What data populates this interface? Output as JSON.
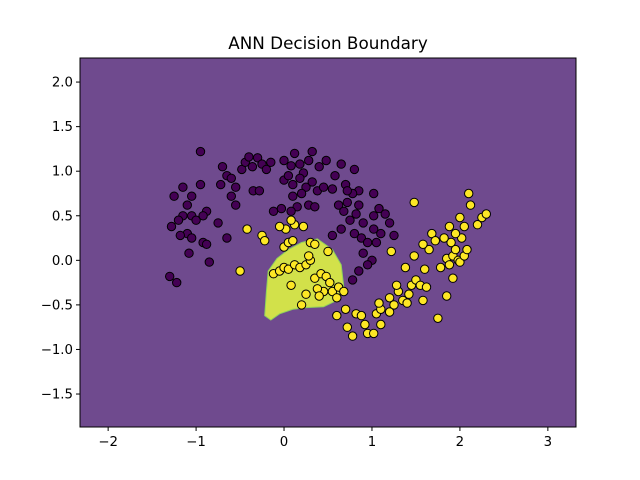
{
  "chart_data": {
    "type": "scatter",
    "title": "ANN Decision Boundary",
    "xlabel": "",
    "ylabel": "",
    "xlim": [
      -2.32,
      3.32
    ],
    "ylim": [
      -1.87,
      2.27
    ],
    "xticks": [
      -2,
      -1,
      0,
      1,
      2,
      3
    ],
    "xtick_labels": [
      "−2",
      "−1",
      "0",
      "1",
      "2",
      "3"
    ],
    "yticks": [
      -1.5,
      -1.0,
      -0.5,
      0.0,
      0.5,
      1.0,
      1.5,
      2.0
    ],
    "ytick_labels": [
      "−1.5",
      "−1.0",
      "−0.5",
      "0.0",
      "0.5",
      "1.0",
      "1.5",
      "2.0"
    ],
    "grid": false,
    "colors": {
      "background_region": "#6f4a8e",
      "class1_region": "#d2e14a",
      "class0_point": "#440154",
      "class1_point": "#fde725",
      "point_edge": "#000000"
    },
    "decision_region_class1": [
      [
        -0.22,
        -0.62
      ],
      [
        -0.2,
        -0.35
      ],
      [
        -0.18,
        -0.12
      ],
      [
        -0.08,
        0.02
      ],
      [
        0.05,
        0.12
      ],
      [
        0.2,
        0.2
      ],
      [
        0.38,
        0.24
      ],
      [
        0.55,
        0.12
      ],
      [
        0.65,
        -0.05
      ],
      [
        0.68,
        -0.3
      ],
      [
        0.6,
        -0.45
      ],
      [
        0.45,
        -0.52
      ],
      [
        0.25,
        -0.53
      ],
      [
        0.1,
        -0.55
      ],
      [
        -0.05,
        -0.6
      ],
      [
        -0.15,
        -0.67
      ]
    ],
    "series": [
      {
        "class": 0,
        "points": [
          [
            -0.95,
            1.22
          ],
          [
            -0.48,
            1.02
          ],
          [
            -0.44,
            1.1
          ],
          [
            -0.4,
            1.16
          ],
          [
            -0.36,
            1.05
          ],
          [
            -0.3,
            1.15
          ],
          [
            -0.25,
            1.08
          ],
          [
            -0.2,
            1.02
          ],
          [
            -0.15,
            1.1
          ],
          [
            0.0,
            1.12
          ],
          [
            0.08,
            1.06
          ],
          [
            0.12,
            1.2
          ],
          [
            0.18,
            1.08
          ],
          [
            0.22,
            0.98
          ],
          [
            0.28,
            1.12
          ],
          [
            0.32,
            1.22
          ],
          [
            0.4,
            1.05
          ],
          [
            0.48,
            1.12
          ],
          [
            0.58,
            0.95
          ],
          [
            0.65,
            1.08
          ],
          [
            0.8,
            1.02
          ],
          [
            -0.65,
            0.95
          ],
          [
            -0.6,
            0.92
          ],
          [
            -0.55,
            0.82
          ],
          [
            -0.35,
            0.78
          ],
          [
            -0.28,
            0.78
          ],
          [
            0.0,
            0.9
          ],
          [
            0.05,
            0.95
          ],
          [
            0.1,
            0.85
          ],
          [
            0.18,
            0.92
          ],
          [
            0.25,
            0.82
          ],
          [
            0.32,
            0.88
          ],
          [
            0.38,
            0.78
          ],
          [
            0.45,
            0.82
          ],
          [
            0.55,
            0.8
          ],
          [
            0.7,
            0.85
          ],
          [
            0.85,
            0.78
          ],
          [
            1.02,
            0.75
          ],
          [
            -0.72,
            0.85
          ],
          [
            -0.6,
            0.72
          ],
          [
            -0.55,
            0.62
          ],
          [
            -1.15,
            0.82
          ],
          [
            -1.05,
            0.72
          ],
          [
            -0.95,
            0.85
          ],
          [
            -0.88,
            0.55
          ],
          [
            -1.1,
            0.62
          ],
          [
            -1.25,
            0.72
          ],
          [
            -1.15,
            0.5
          ],
          [
            -1.05,
            0.5
          ],
          [
            -1.0,
            0.45
          ],
          [
            -0.92,
            0.5
          ],
          [
            -1.2,
            0.45
          ],
          [
            -1.28,
            0.38
          ],
          [
            -1.1,
            0.3
          ],
          [
            -1.18,
            0.28
          ],
          [
            -1.05,
            0.25
          ],
          [
            -0.92,
            0.2
          ],
          [
            -0.75,
            0.42
          ],
          [
            -0.88,
            0.18
          ],
          [
            -1.08,
            0.08
          ],
          [
            -0.85,
            -0.02
          ],
          [
            -1.3,
            -0.18
          ],
          [
            -1.22,
            -0.25
          ],
          [
            -0.65,
            0.25
          ],
          [
            0.1,
            0.72
          ],
          [
            0.2,
            0.75
          ],
          [
            0.28,
            0.62
          ],
          [
            0.35,
            0.6
          ],
          [
            0.15,
            0.6
          ],
          [
            0.08,
            0.55
          ],
          [
            -0.12,
            0.55
          ],
          [
            -0.03,
            0.58
          ],
          [
            0.62,
            0.62
          ],
          [
            0.68,
            0.55
          ],
          [
            0.72,
            0.65
          ],
          [
            0.78,
            0.75
          ],
          [
            0.85,
            0.62
          ],
          [
            0.82,
            0.52
          ],
          [
            0.9,
            0.42
          ],
          [
            0.75,
            0.45
          ],
          [
            0.65,
            0.35
          ],
          [
            0.55,
            0.28
          ],
          [
            0.8,
            0.3
          ],
          [
            0.88,
            0.25
          ],
          [
            0.95,
            0.2
          ],
          [
            1.02,
            0.5
          ],
          [
            1.08,
            0.58
          ],
          [
            1.15,
            0.52
          ],
          [
            1.1,
            0.3
          ],
          [
            1.05,
            0.2
          ],
          [
            1.25,
            0.28
          ],
          [
            1.2,
            0.42
          ],
          [
            1.0,
            0.0
          ],
          [
            0.9,
            0.08
          ],
          [
            0.85,
            -0.12
          ],
          [
            0.95,
            -0.05
          ],
          [
            0.78,
            -0.22
          ],
          [
            1.02,
            0.35
          ],
          [
            0.72,
            0.78
          ],
          [
            -0.7,
            1.05
          ]
        ]
      },
      {
        "class": 1,
        "points": [
          [
            -0.5,
            -0.12
          ],
          [
            -0.42,
            0.35
          ],
          [
            -0.25,
            0.28
          ],
          [
            -0.22,
            0.22
          ],
          [
            -0.12,
            -0.15
          ],
          [
            -0.05,
            -0.12
          ],
          [
            0.0,
            -0.08
          ],
          [
            0.05,
            -0.1
          ],
          [
            0.12,
            -0.05
          ],
          [
            0.18,
            -0.08
          ],
          [
            0.25,
            -0.05
          ],
          [
            0.3,
            0.0
          ],
          [
            0.35,
            -0.2
          ],
          [
            0.42,
            -0.15
          ],
          [
            0.48,
            -0.18
          ],
          [
            0.52,
            -0.25
          ],
          [
            0.45,
            -0.35
          ],
          [
            0.38,
            -0.32
          ],
          [
            0.4,
            -0.4
          ],
          [
            0.55,
            -0.35
          ],
          [
            0.6,
            -0.42
          ],
          [
            0.25,
            -0.38
          ],
          [
            0.2,
            -0.5
          ],
          [
            0.08,
            -0.28
          ],
          [
            0.0,
            0.15
          ],
          [
            0.05,
            0.2
          ],
          [
            0.1,
            0.22
          ],
          [
            0.12,
            0.4
          ],
          [
            0.08,
            0.45
          ],
          [
            0.02,
            0.35
          ],
          [
            -0.05,
            0.38
          ],
          [
            0.22,
            0.38
          ],
          [
            0.3,
            0.2
          ],
          [
            0.28,
            0.05
          ],
          [
            0.35,
            0.18
          ],
          [
            0.5,
            0.1
          ],
          [
            0.62,
            -0.3
          ],
          [
            0.68,
            -0.35
          ],
          [
            0.7,
            -0.55
          ],
          [
            0.6,
            -0.62
          ],
          [
            0.72,
            -0.75
          ],
          [
            0.78,
            -0.85
          ],
          [
            0.82,
            -0.6
          ],
          [
            0.88,
            -0.62
          ],
          [
            0.92,
            -0.72
          ],
          [
            0.95,
            -0.82
          ],
          [
            1.02,
            -0.82
          ],
          [
            1.05,
            -0.6
          ],
          [
            1.1,
            -0.55
          ],
          [
            1.08,
            -0.48
          ],
          [
            1.2,
            -0.42
          ],
          [
            1.25,
            -0.5
          ],
          [
            1.3,
            -0.35
          ],
          [
            1.35,
            -0.45
          ],
          [
            1.4,
            -0.48
          ],
          [
            1.42,
            -0.38
          ],
          [
            1.45,
            -0.28
          ],
          [
            1.5,
            -0.22
          ],
          [
            1.55,
            -0.28
          ],
          [
            1.6,
            -0.1
          ],
          [
            1.58,
            -0.45
          ],
          [
            1.62,
            -0.3
          ],
          [
            1.65,
            0.12
          ],
          [
            1.68,
            0.3
          ],
          [
            1.75,
            -0.65
          ],
          [
            1.78,
            -0.08
          ],
          [
            1.85,
            0.02
          ],
          [
            1.88,
            -0.05
          ],
          [
            1.9,
            0.2
          ],
          [
            1.92,
            0.05
          ],
          [
            1.95,
            0.12
          ],
          [
            1.98,
            0.0
          ],
          [
            2.0,
            -0.02
          ],
          [
            2.05,
            0.05
          ],
          [
            2.08,
            0.12
          ],
          [
            2.02,
            0.25
          ],
          [
            1.95,
            0.3
          ],
          [
            1.88,
            0.38
          ],
          [
            1.92,
            -0.2
          ],
          [
            1.85,
            -0.4
          ],
          [
            2.0,
            0.48
          ],
          [
            2.05,
            0.38
          ],
          [
            2.12,
            0.62
          ],
          [
            2.1,
            0.75
          ],
          [
            2.25,
            0.48
          ],
          [
            2.3,
            0.52
          ],
          [
            2.2,
            0.4
          ],
          [
            1.82,
            0.25
          ],
          [
            1.72,
            0.22
          ],
          [
            1.58,
            0.18
          ],
          [
            1.48,
            0.05
          ],
          [
            1.38,
            -0.08
          ],
          [
            1.28,
            -0.28
          ],
          [
            1.22,
            0.1
          ],
          [
            1.48,
            0.65
          ],
          [
            1.2,
            -0.58
          ],
          [
            1.1,
            -0.72
          ]
        ]
      }
    ]
  }
}
